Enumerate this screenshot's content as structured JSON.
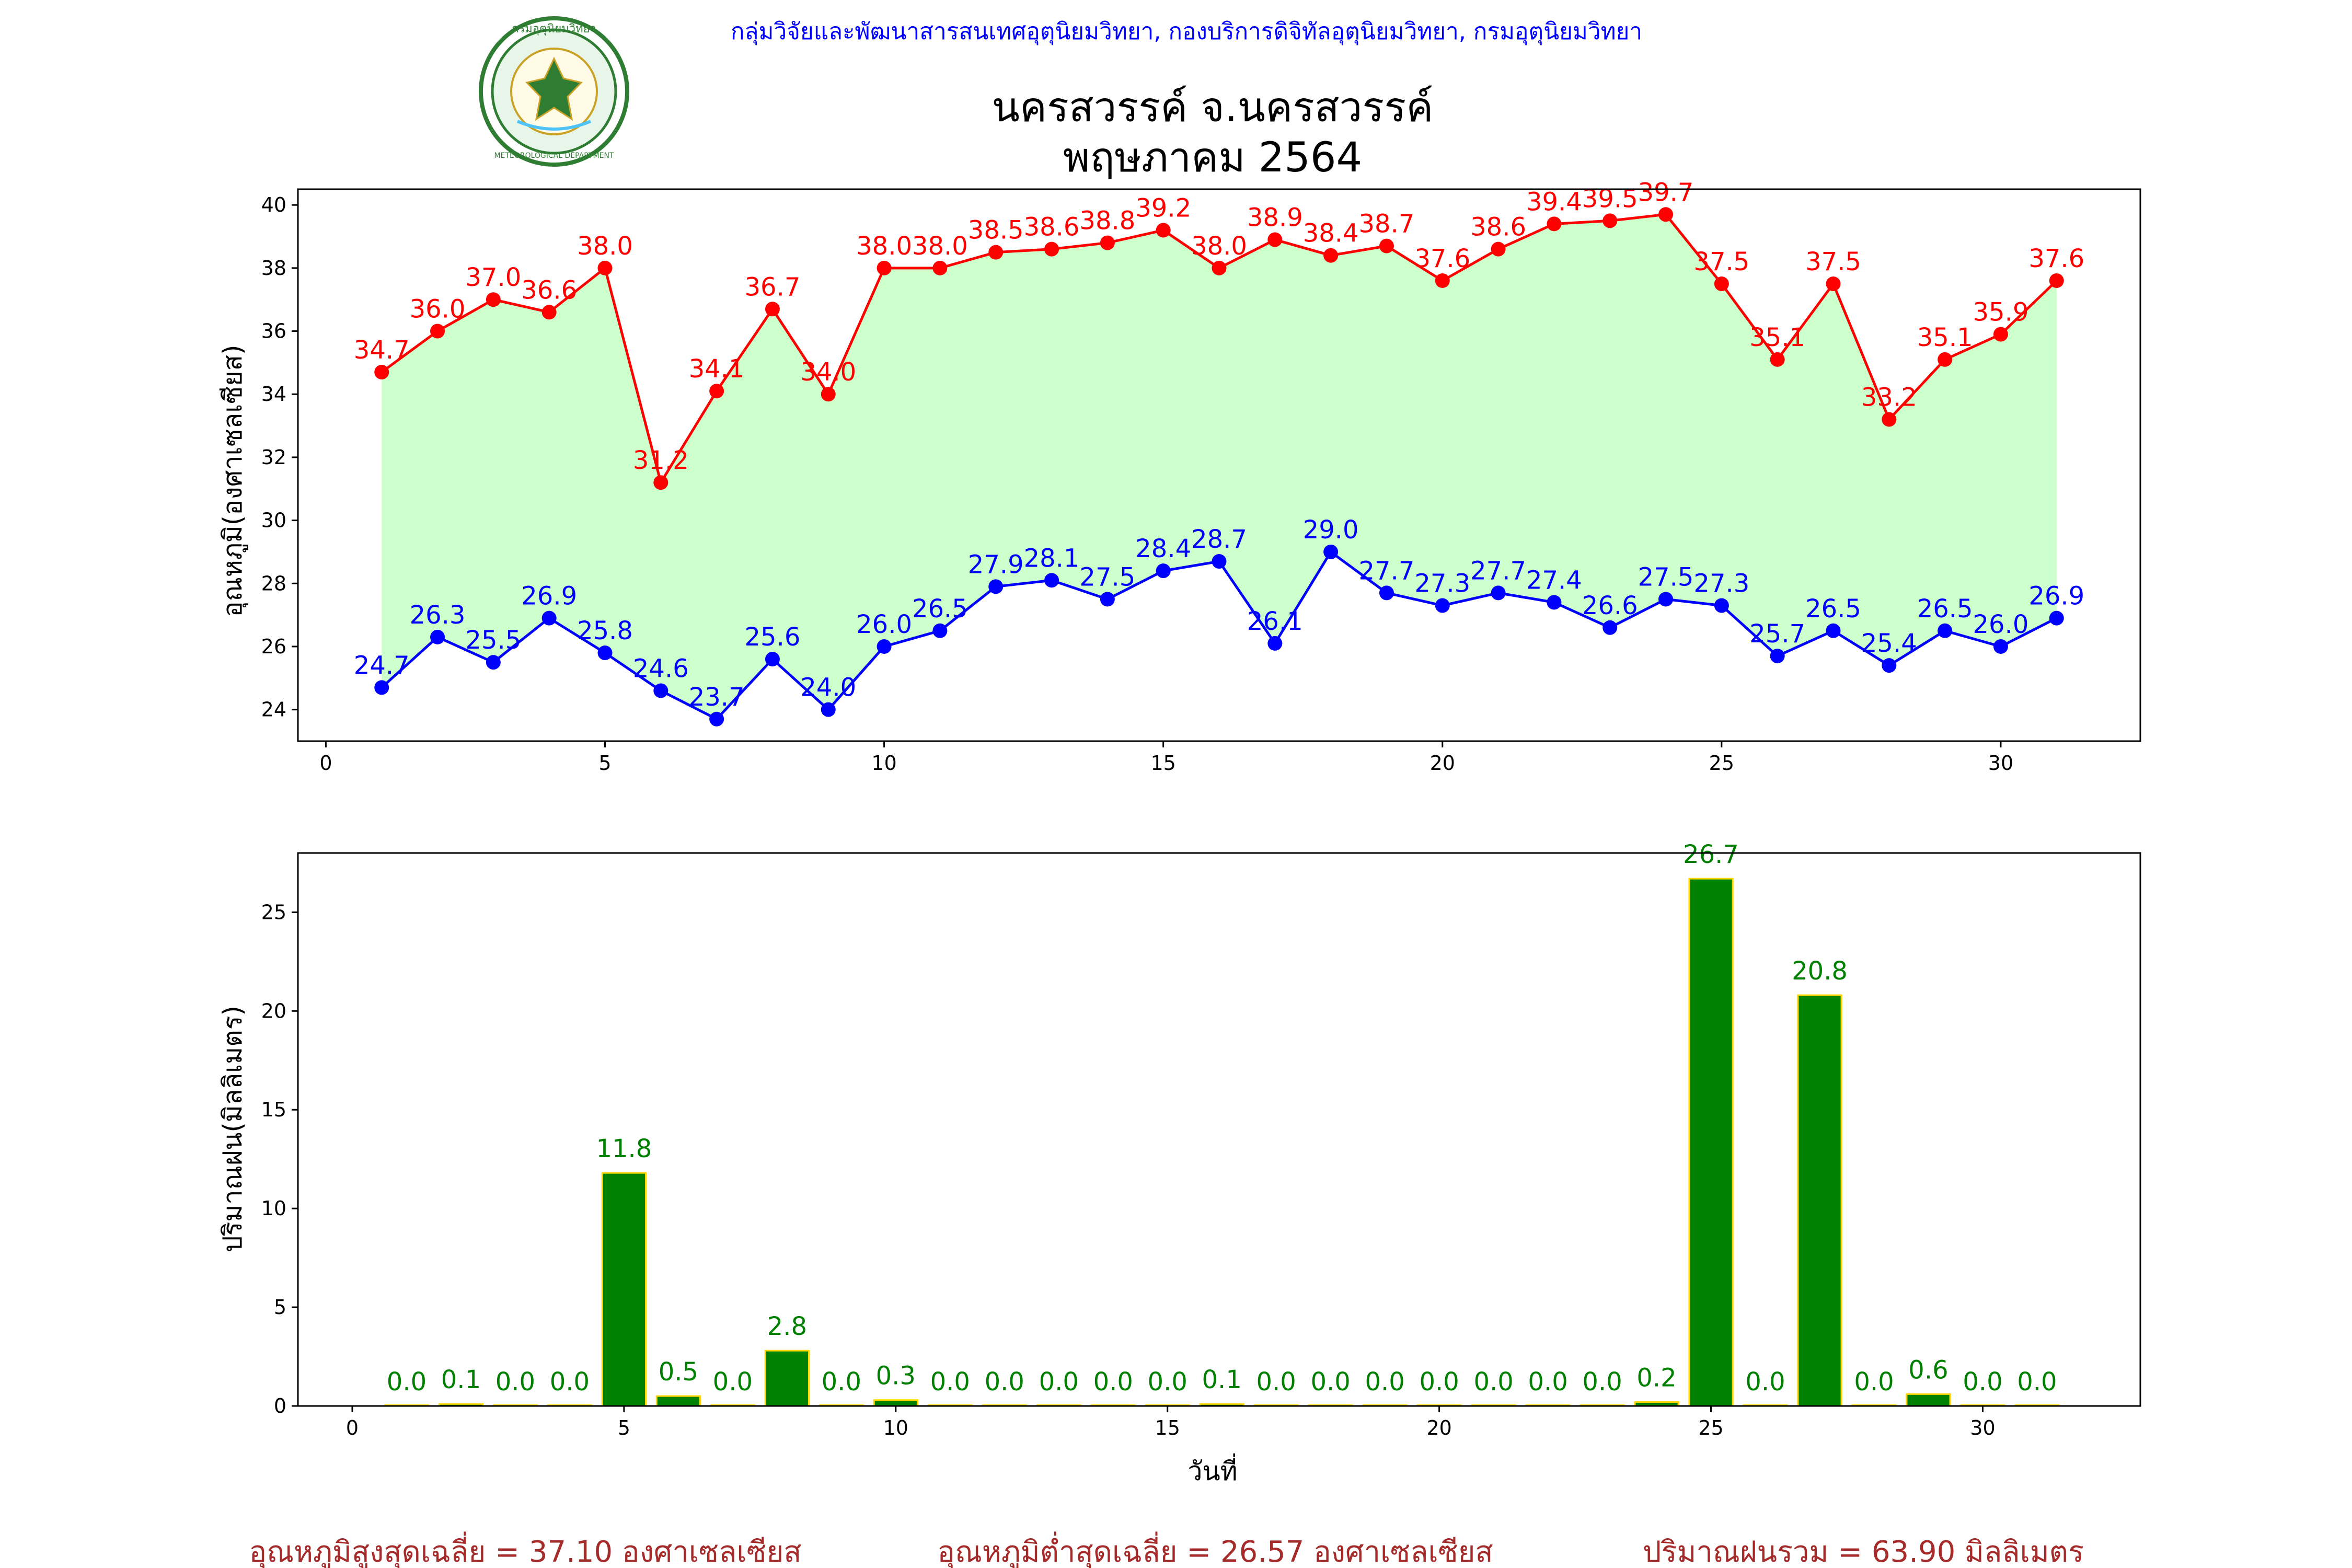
{
  "header": {
    "org": "กลุ่มวิจัยและพัฒนาสารสนเทศอุตุนิยมวิทยา, กองบริการดิจิทัลอุตุนิยมวิทยา, กรมอุตุนิยมวิทยา",
    "title_line1": "นครสวรรค์  จ.นครสวรรค์",
    "title_line2": "พฤษภาคม 2564",
    "logo_text_top": "กรมอุตุนิยมวิทยา",
    "logo_text_bottom": "METEOROLOGICAL DEPARTMENT"
  },
  "colors": {
    "max": "#ff0000",
    "min": "#0000ff",
    "fill": "#ccffcc",
    "bar": "#008000",
    "bar_edge": "#ffd700",
    "rain_label": "#008000",
    "stats": "#a52a2a"
  },
  "chart_data": [
    {
      "type": "line",
      "ylabel": "อุณหภูมิ(องศาเซลเซียส)",
      "xlabel": "",
      "xlim": [
        -0.5,
        32.5
      ],
      "ylim": [
        23,
        40.5
      ],
      "xticks": [
        0,
        5,
        10,
        15,
        20,
        25,
        30
      ],
      "yticks": [
        24,
        26,
        28,
        30,
        32,
        34,
        36,
        38,
        40
      ],
      "fill_between": true,
      "x": [
        1,
        2,
        3,
        4,
        5,
        6,
        7,
        8,
        9,
        10,
        11,
        12,
        13,
        14,
        15,
        16,
        17,
        18,
        19,
        20,
        21,
        22,
        23,
        24,
        25,
        26,
        27,
        28,
        29,
        30,
        31
      ],
      "series": [
        {
          "key": "max",
          "values": [
            34.7,
            36.0,
            37.0,
            36.6,
            38.0,
            31.2,
            34.1,
            36.7,
            34.0,
            38.0,
            38.0,
            38.5,
            38.6,
            38.8,
            39.2,
            38.0,
            38.9,
            38.4,
            38.7,
            37.6,
            38.6,
            39.4,
            39.5,
            39.7,
            37.5,
            35.1,
            37.5,
            33.2,
            35.1,
            35.9,
            37.6
          ]
        },
        {
          "key": "min",
          "values": [
            24.7,
            26.3,
            25.5,
            26.9,
            25.8,
            24.6,
            23.7,
            25.6,
            24.0,
            26.0,
            26.5,
            27.9,
            28.1,
            27.5,
            28.4,
            28.7,
            26.1,
            29.0,
            27.7,
            27.3,
            27.7,
            27.4,
            26.6,
            27.5,
            27.3,
            25.7,
            26.5,
            25.4,
            26.5,
            26.0,
            26.9
          ]
        }
      ]
    },
    {
      "type": "bar",
      "ylabel": "ปริมาณฝน(มิลลิเมตร)",
      "xlabel": "วันที่",
      "xlim": [
        -1,
        32.9
      ],
      "ylim": [
        0,
        28.0
      ],
      "xticks": [
        0,
        5,
        10,
        15,
        20,
        25,
        30
      ],
      "yticks": [
        0,
        5,
        10,
        15,
        20,
        25
      ],
      "x": [
        1,
        2,
        3,
        4,
        5,
        6,
        7,
        8,
        9,
        10,
        11,
        12,
        13,
        14,
        15,
        16,
        17,
        18,
        19,
        20,
        21,
        22,
        23,
        24,
        25,
        26,
        27,
        28,
        29,
        30,
        31
      ],
      "values": [
        0.0,
        0.1,
        0.0,
        0.0,
        11.8,
        0.5,
        0.0,
        2.8,
        0.0,
        0.3,
        0.0,
        0.0,
        0.0,
        0.0,
        0.0,
        0.1,
        0.0,
        0.0,
        0.0,
        0.0,
        0.0,
        0.0,
        0.0,
        0.2,
        26.7,
        0.0,
        20.8,
        0.0,
        0.6,
        0.0,
        0.0
      ]
    }
  ],
  "stats": {
    "avg_max": "อุณหภูมิสูงสุดเฉลี่ย = 37.10 องศาเซลเซียส",
    "avg_min": "อุณหภูมิต่ำสุดเฉลี่ย = 26.57 องศาเซลเซียส",
    "total_rain": "ปริมาณฝนรวม = 63.90 มิลลิเมตร"
  }
}
